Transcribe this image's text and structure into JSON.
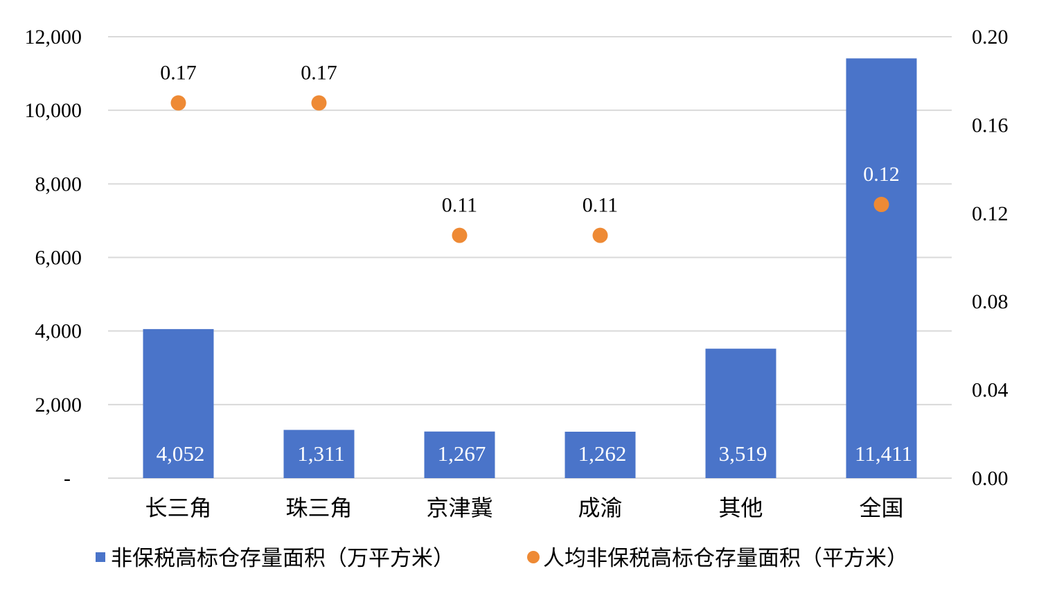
{
  "chart_data": {
    "type": "bar",
    "categories": [
      "长三角",
      "珠三角",
      "京津冀",
      "成渝",
      "其他",
      "全国"
    ],
    "series": [
      {
        "name": "非保税高标仓存量面积（万平方米）",
        "type": "bar",
        "axis": "left",
        "color": "#4a74c9",
        "values": [
          4052,
          1311,
          1267,
          1262,
          3519,
          11411
        ],
        "labels": [
          "4,052",
          "1,311",
          "1,267",
          "1,262",
          "3,519",
          "11,411"
        ]
      },
      {
        "name": "人均非保税高标仓存量面积（平方米）",
        "type": "scatter",
        "axis": "right",
        "color": "#ee8a35",
        "values": [
          0.17,
          0.17,
          0.11,
          0.11,
          null,
          0.124
        ],
        "labels": [
          "0.17",
          "0.17",
          "0.11",
          "0.11",
          null,
          "0.12"
        ]
      }
    ],
    "y_left": {
      "min": 0,
      "max": 12000,
      "ticks": [
        0,
        2000,
        4000,
        6000,
        8000,
        10000,
        12000
      ],
      "tick_labels": [
        "-",
        "2,000",
        "4,000",
        "6,000",
        "8,000",
        "10,000",
        "12,000"
      ]
    },
    "y_right": {
      "min": 0,
      "max": 0.2,
      "ticks": [
        0,
        0.04,
        0.08,
        0.12,
        0.16,
        0.2
      ],
      "tick_labels": [
        "0.00",
        "0.04",
        "0.08",
        "0.12",
        "0.16",
        "0.20"
      ]
    },
    "grid": true,
    "legend_position": "bottom"
  }
}
